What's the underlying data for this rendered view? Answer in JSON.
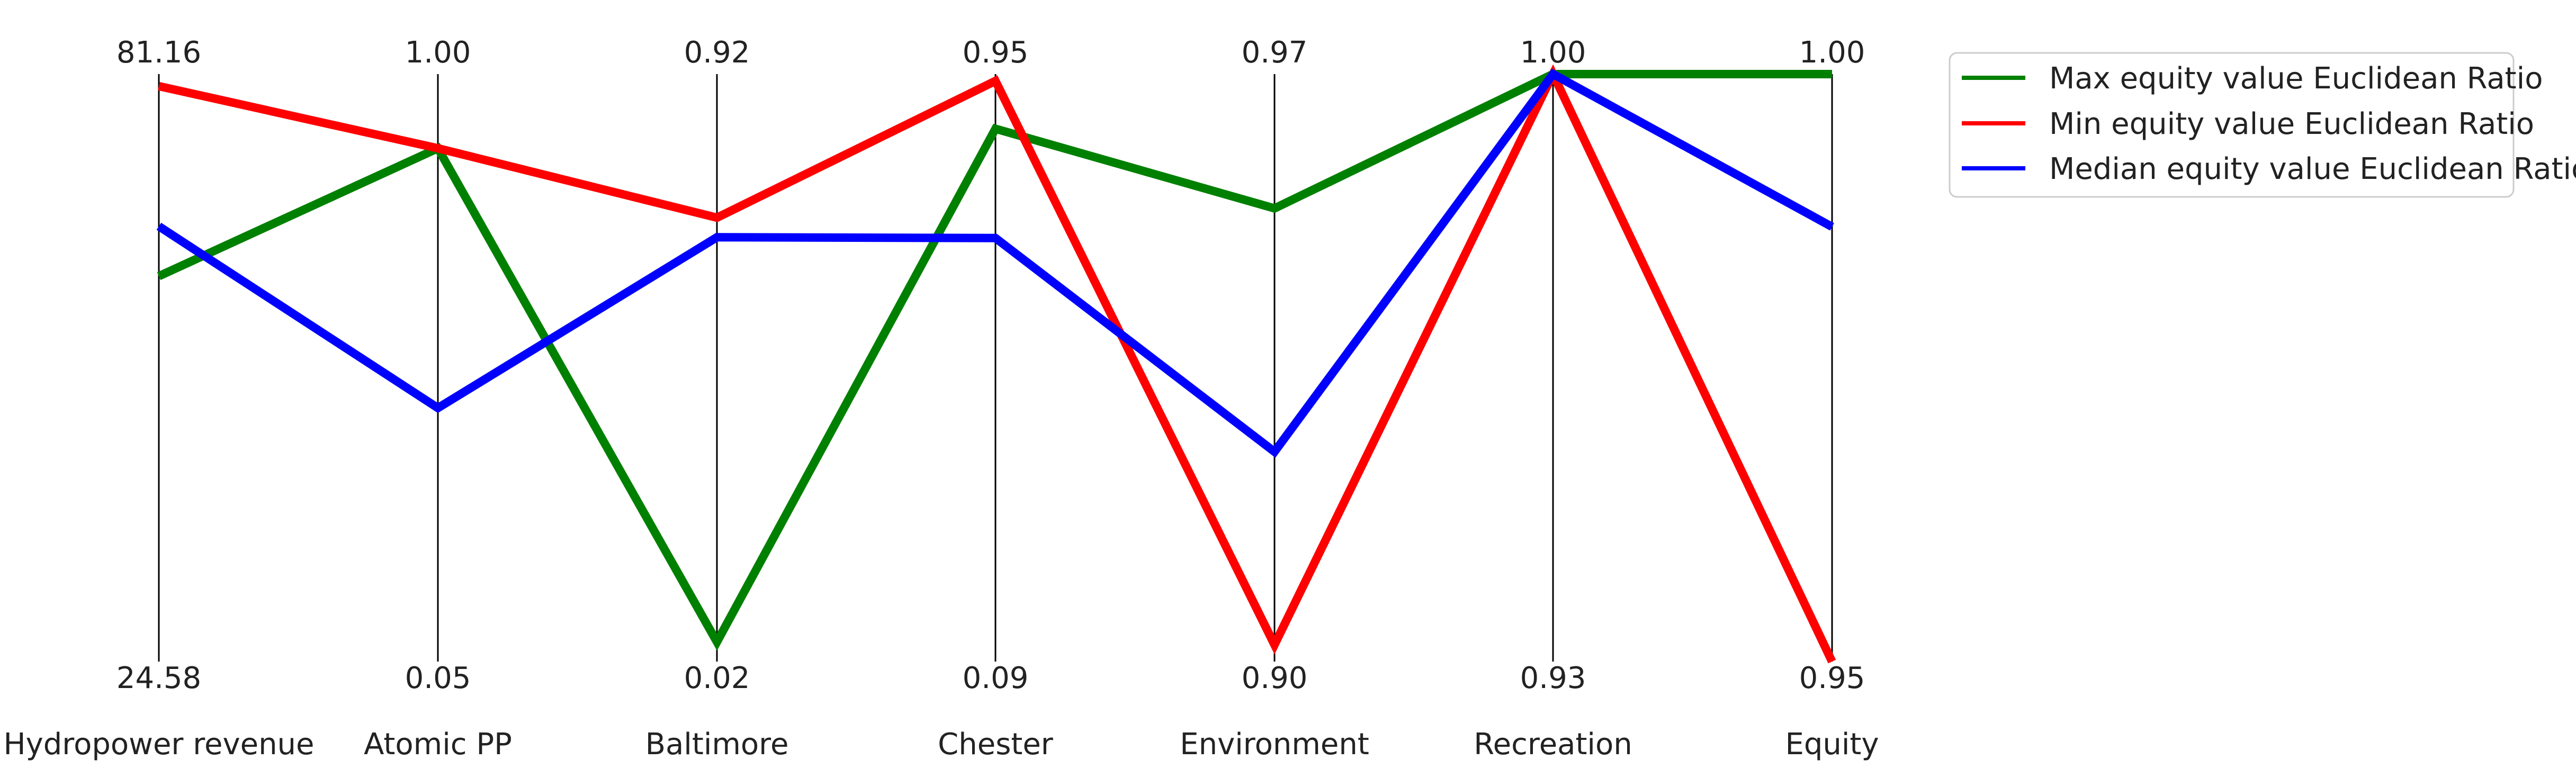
{
  "chart_data": {
    "type": "parallel-coordinates",
    "title": "",
    "axes": [
      {
        "name": "Hydropower revenue",
        "max": 81.16,
        "min": 24.58,
        "max_label": "81.16",
        "min_label": "24.58"
      },
      {
        "name": "Atomic PP",
        "max": 1.0,
        "min": 0.05,
        "max_label": "1.00",
        "min_label": "0.05"
      },
      {
        "name": "Baltimore",
        "max": 0.92,
        "min": 0.02,
        "max_label": "0.92",
        "min_label": "0.02"
      },
      {
        "name": "Chester",
        "max": 0.95,
        "min": 0.09,
        "max_label": "0.95",
        "min_label": "0.09"
      },
      {
        "name": "Environment",
        "max": 0.97,
        "min": 0.9,
        "max_label": "0.97",
        "min_label": "0.90"
      },
      {
        "name": "Recreation",
        "max": 1.0,
        "min": 0.93,
        "max_label": "1.00",
        "min_label": "0.93"
      },
      {
        "name": "Equity",
        "max": 1.0,
        "min": 0.95,
        "max_label": "1.00",
        "min_label": "0.95"
      }
    ],
    "series": [
      {
        "name": "Max equity value Euclidean Ratio",
        "color": "#008000",
        "values": [
          61.7,
          0.88,
          0.05,
          0.87,
          0.954,
          1.0,
          1.0
        ]
      },
      {
        "name": "Min equity value Euclidean Ratio",
        "color": "#ff0000",
        "values": [
          80.0,
          0.88,
          0.7,
          0.94,
          0.902,
          1.0,
          0.95
        ]
      },
      {
        "name": "Median equity value Euclidean Ratio",
        "color": "#0000ff",
        "values": [
          66.5,
          0.46,
          0.67,
          0.71,
          0.925,
          1.0,
          0.987
        ]
      }
    ],
    "legend_position": "top-right",
    "grid": false
  }
}
